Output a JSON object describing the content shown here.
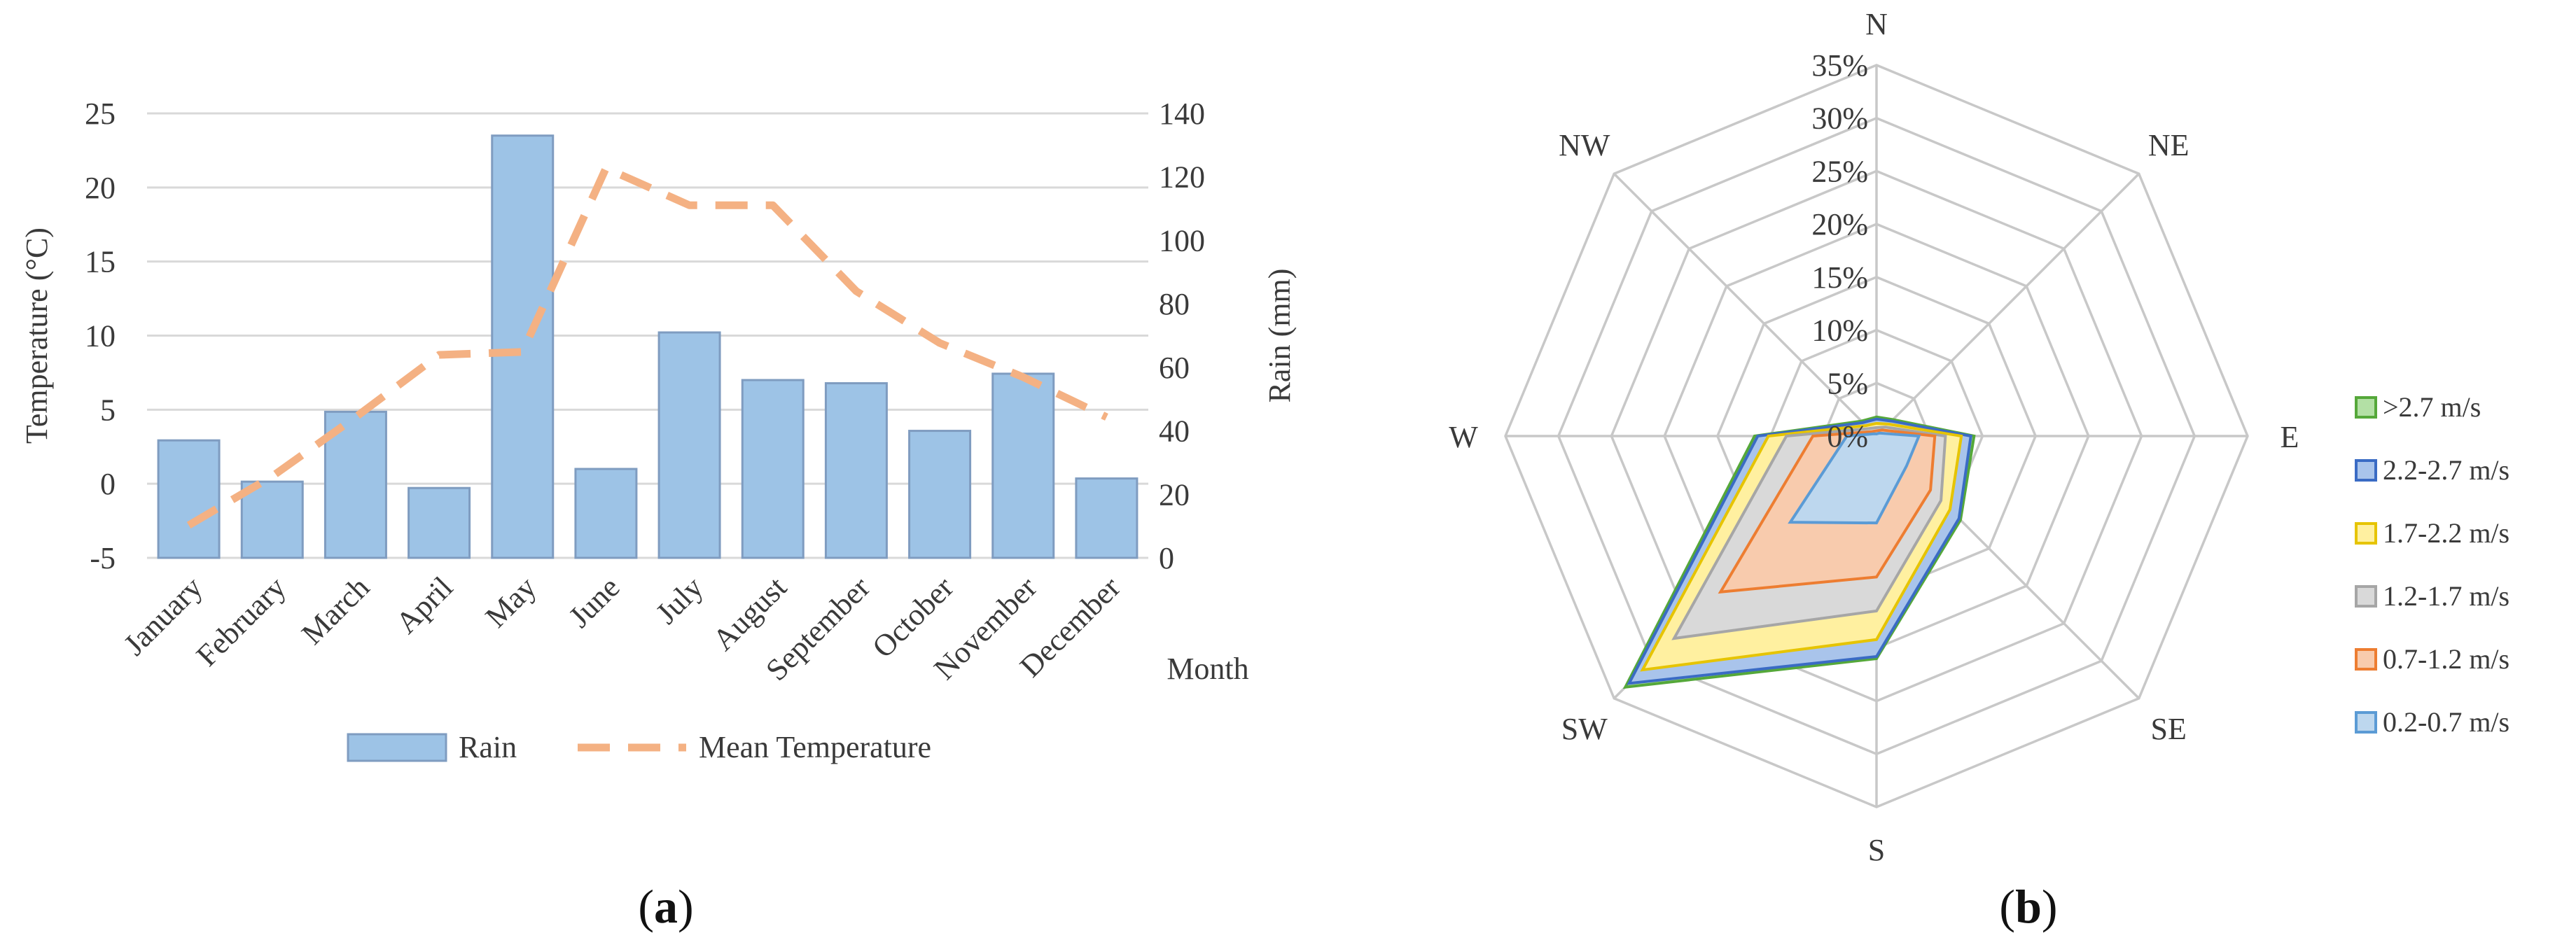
{
  "chart_data": [
    {
      "panel": "(a)",
      "panel_letter": "a",
      "type": "bar+line",
      "xlabel": "Month",
      "categories": [
        "January",
        "February",
        "March",
        "April",
        "May",
        "June",
        "July",
        "August",
        "September",
        "October",
        "November",
        "December"
      ],
      "left_axis": {
        "label": "Temperature (°C)",
        "ylim": [
          -5,
          25
        ],
        "ticks": [
          -5,
          0,
          5,
          10,
          15,
          20,
          25
        ]
      },
      "right_axis": {
        "label": "Rain (mm)",
        "ylim": [
          0,
          140
        ],
        "ticks": [
          0,
          20,
          40,
          60,
          80,
          100,
          120,
          140
        ]
      },
      "series": [
        {
          "name": "Rain",
          "type": "bar",
          "axis": "right",
          "color": "#9dc3e6",
          "edge": "#7f9cc0",
          "values": [
            37,
            24,
            46,
            22,
            133,
            28,
            71,
            56,
            55,
            40,
            58,
            25
          ]
        },
        {
          "name": "Mean Temperature",
          "type": "line",
          "axis": "left",
          "color": "#f4b183",
          "dash": true,
          "values": [
            -2.8,
            0.5,
            4.5,
            8.7,
            8.9,
            21.3,
            18.8,
            18.8,
            13.0,
            9.5,
            7.2,
            4.5
          ]
        }
      ],
      "legend": [
        "Rain",
        "Mean Temperature"
      ]
    },
    {
      "panel": "(b)",
      "panel_letter": "b",
      "type": "radar",
      "directions": [
        "N",
        "NE",
        "E",
        "SE",
        "S",
        "SW",
        "W",
        "NW"
      ],
      "rmax": 35,
      "ring_ticks": [
        "0%",
        "5%",
        "10%",
        "15%",
        "20%",
        "25%",
        "30%",
        "35%"
      ],
      "series": [
        {
          "name": ">2.7 m/s",
          "fill": "#b3e0a5",
          "edge": "#55a83a",
          "values": [
            1.8,
            2.2,
            9.2,
            11.2,
            21.0,
            33.5,
            11.5,
            2.0
          ]
        },
        {
          "name": "2.2-2.7 m/s",
          "fill": "#a9c4eb",
          "edge": "#3a6bc4",
          "values": [
            1.6,
            2.0,
            8.9,
            11.0,
            20.8,
            33.0,
            11.2,
            1.8
          ]
        },
        {
          "name": "1.7-2.2 m/s",
          "fill": "#fff0a0",
          "edge": "#e6c400",
          "values": [
            1.2,
            1.6,
            8.0,
            9.8,
            19.2,
            31.2,
            10.2,
            1.4
          ]
        },
        {
          "name": "1.2-1.7 m/s",
          "fill": "#d9d9d9",
          "edge": "#a6a6a6",
          "values": [
            0.8,
            1.2,
            6.5,
            8.6,
            16.5,
            27.0,
            8.5,
            1.0
          ]
        },
        {
          "name": "0.7-1.2 m/s",
          "fill": "#f8cbad",
          "edge": "#ed7d31",
          "values": [
            0.5,
            0.8,
            5.5,
            7.2,
            13.3,
            20.8,
            6.0,
            0.6
          ]
        },
        {
          "name": "0.2-0.7 m/s",
          "fill": "#bdd7ee",
          "edge": "#5b9bd5",
          "values": [
            0.2,
            0.4,
            4.0,
            4.0,
            8.2,
            11.5,
            2.8,
            0.3
          ]
        }
      ],
      "legend": [
        ">2.7 m/s",
        "2.2-2.7 m/s",
        "1.7-2.2 m/s",
        "1.2-1.7 m/s",
        "0.7-1.2 m/s",
        "0.2-0.7 m/s"
      ]
    }
  ]
}
